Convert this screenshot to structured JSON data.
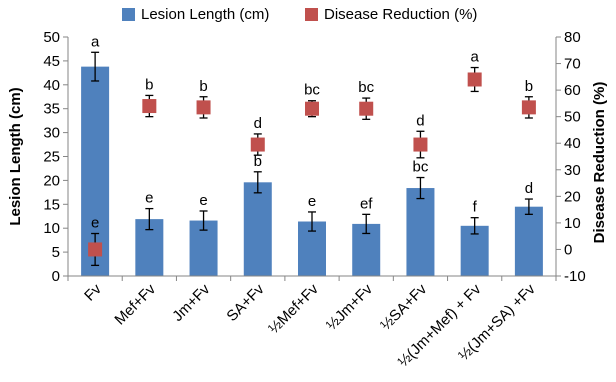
{
  "colors": {
    "bar": "#4f81bd",
    "marker": "#c0504d"
  },
  "chart_data": {
    "type": "bar",
    "categories": [
      "Fv",
      "Mef+Fv",
      "Jm+Fv",
      "SA+Fv",
      "½Mef+Fv",
      "½Jm+Fv",
      "½SA+Fv",
      "½(Jm+Mef) + Fv",
      "½(Jm+SA) +Fv"
    ],
    "series": [
      {
        "name": "Lesion Length (cm)",
        "kind": "bar",
        "axis": "left",
        "values": [
          43.8,
          11.9,
          11.6,
          19.6,
          11.4,
          10.9,
          18.4,
          10.5,
          14.5
        ],
        "errors": [
          3.0,
          2.2,
          2.0,
          2.2,
          2.0,
          2.0,
          2.2,
          1.7,
          1.6
        ],
        "letters": [
          "a",
          "e",
          "e",
          "b",
          "e",
          "ef",
          "bc",
          "f",
          "d"
        ]
      },
      {
        "name": "Disease Reduction (%)",
        "kind": "marker",
        "axis": "right",
        "values": [
          0,
          54,
          53.5,
          39.5,
          53,
          53,
          39.5,
          64,
          53.5
        ],
        "errors": [
          6.0,
          4.0,
          4.0,
          4.0,
          3.0,
          4.0,
          5.0,
          4.5,
          4.0
        ],
        "letters": [
          "e",
          "b",
          "b",
          "d",
          "bc",
          "bc",
          "d",
          "a",
          "b"
        ]
      }
    ],
    "ylabel": "Lesion Length (cm)",
    "y2label": "Disease Reduction (%)",
    "ylim": [
      0,
      50
    ],
    "yticks": [
      0,
      5,
      10,
      15,
      20,
      25,
      30,
      35,
      40,
      45,
      50
    ],
    "y2lim": [
      -10,
      80
    ],
    "y2ticks": [
      -10,
      0,
      10,
      20,
      30,
      40,
      50,
      60,
      70,
      80
    ],
    "legend_position": "top",
    "grid": false
  }
}
